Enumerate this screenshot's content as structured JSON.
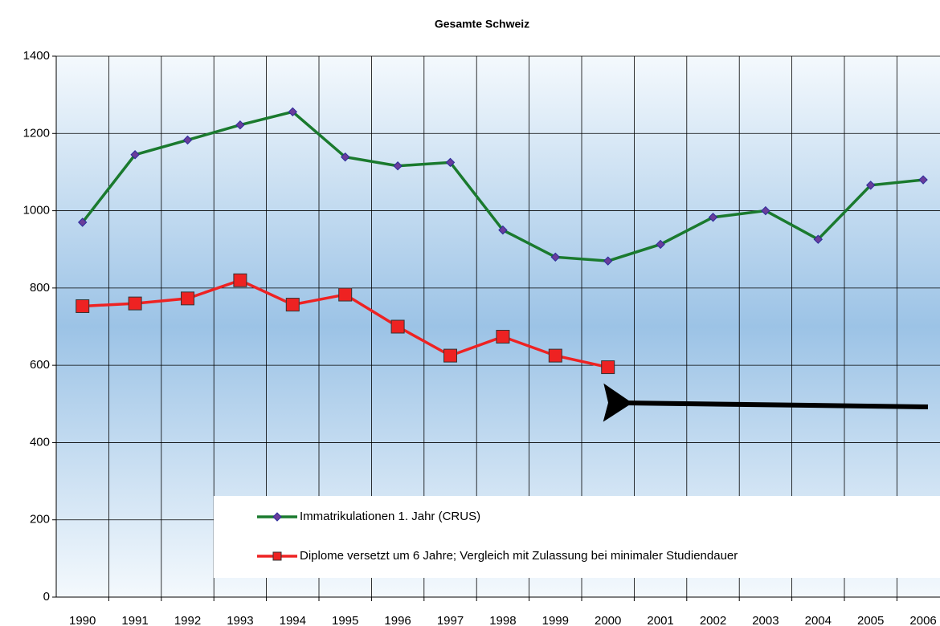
{
  "chart_data": {
    "type": "line",
    "title": "Gesamte Schweiz",
    "categories": [
      "1990",
      "1991",
      "1992",
      "1993",
      "1994",
      "1995",
      "1996",
      "1997",
      "1998",
      "1999",
      "2000",
      "2001",
      "2002",
      "2003",
      "2004",
      "2005",
      "2006"
    ],
    "series": [
      {
        "name": "Immatrikulationen 1. Jahr (CRUS)",
        "color": "#1a7a2e",
        "marker": "diamond",
        "values": [
          970,
          1145,
          1183,
          1222,
          1256,
          1139,
          1116,
          1125,
          950,
          880,
          870,
          913,
          983,
          1000,
          926,
          1066,
          1080
        ]
      },
      {
        "name": "Diplome versetzt um 6 Jahre; Vergleich mit Zulassung bei minimaler Studiendauer",
        "color": "#ee2222",
        "marker": "square",
        "values": [
          753,
          760,
          773,
          820,
          757,
          783,
          700,
          625,
          674,
          625,
          595,
          null,
          null,
          null,
          null,
          null,
          null
        ]
      }
    ],
    "ylim": [
      0,
      1400
    ],
    "yticks": [
      0,
      200,
      400,
      600,
      800,
      1000,
      1200,
      1400
    ],
    "grid": true
  }
}
